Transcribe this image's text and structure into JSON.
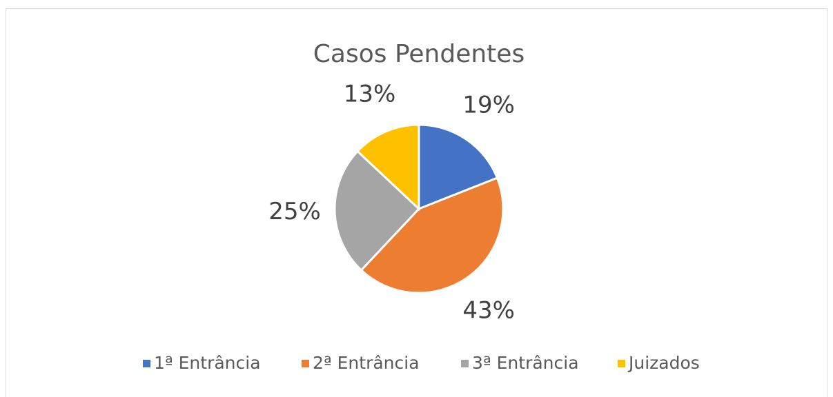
{
  "chart_data": {
    "type": "pie",
    "title": "Casos Pendentes",
    "categories": [
      "1ª Entrância",
      "2ª Entrância",
      "3ª Entrância",
      "Juizados"
    ],
    "values": [
      19,
      43,
      25,
      13
    ],
    "value_labels": [
      "19%",
      "43%",
      "25%",
      "13%"
    ],
    "colors": [
      "#4472c4",
      "#ed7d31",
      "#a5a5a5",
      "#ffc000"
    ],
    "legend": "bottom"
  }
}
